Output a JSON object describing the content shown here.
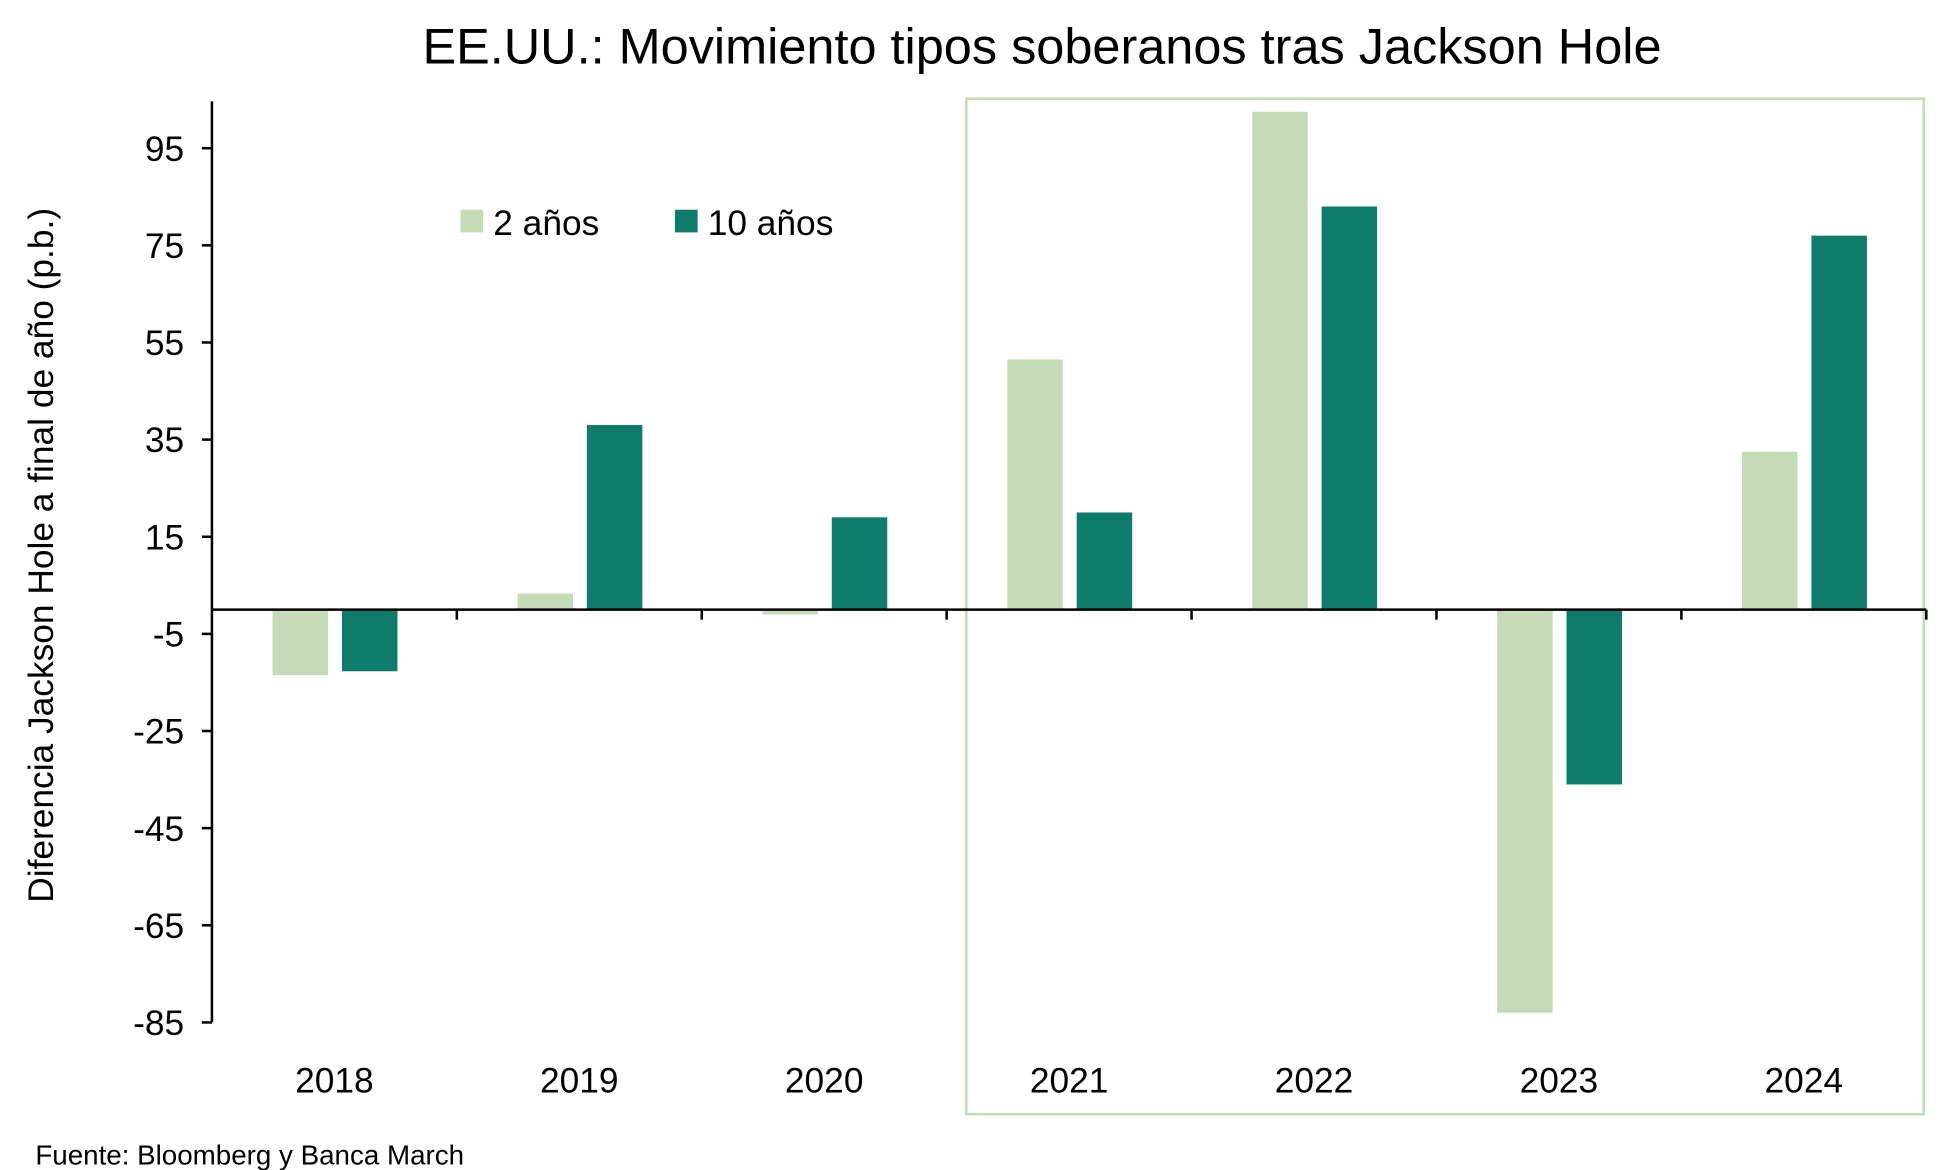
{
  "chart_data": {
    "type": "bar",
    "title": "EE.UU.: Movimiento tipos soberanos tras Jackson Hole",
    "xlabel": "",
    "ylabel": "Diferencia Jackson Hole a final de año (p.b.)",
    "categories": [
      "2018",
      "2019",
      "2020",
      "2021",
      "2022",
      "2023",
      "2024"
    ],
    "series": [
      {
        "name": "2 años",
        "color": "#c5dbb7",
        "values": [
          -13.5,
          3.3,
          -1,
          51.5,
          102.5,
          -83,
          32.5
        ]
      },
      {
        "name": "10 años",
        "color": "#0e7b6b",
        "values": [
          -12.7,
          38,
          19,
          20,
          83,
          -36,
          77
        ]
      }
    ],
    "ylim": [
      -85,
      105
    ],
    "yticks": [
      95,
      75,
      55,
      35,
      15,
      -5,
      -25,
      -45,
      -65,
      -85
    ],
    "ytick_labels": [
      "95",
      "75",
      "55",
      "35",
      "15",
      "-5",
      "-25",
      "-45",
      "-65",
      "-85"
    ],
    "grid": false,
    "legend_position": "top-left",
    "highlight_categories": [
      "2021",
      "2024"
    ],
    "highlight_color": "#c5dbb7"
  },
  "source": "Fuente: Bloomberg y Banca March"
}
